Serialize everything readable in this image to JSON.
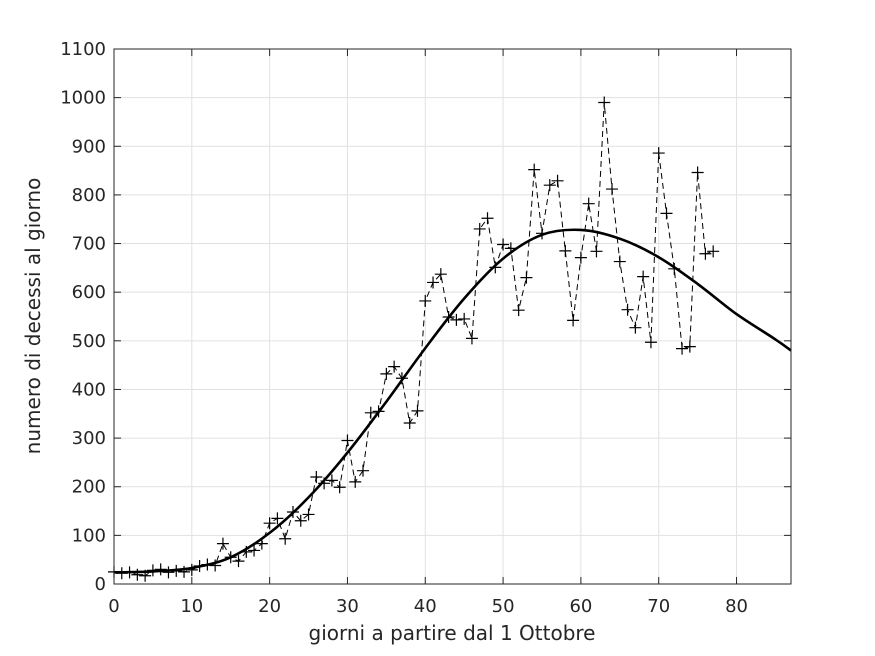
{
  "chart_data": {
    "type": "line",
    "title": "",
    "xlabel": "giorni a partire dal 1 Ottobre",
    "ylabel": "numero di decessi al giorno",
    "xlim": [
      0,
      87
    ],
    "ylim": [
      0,
      1100
    ],
    "x_ticks": [
      0,
      10,
      20,
      30,
      40,
      50,
      60,
      70,
      80
    ],
    "x_tick_labels": [
      "0",
      "10",
      "20",
      "30",
      "40",
      "50",
      "60",
      "70",
      "80"
    ],
    "y_ticks": [
      0,
      100,
      200,
      300,
      400,
      500,
      600,
      700,
      800,
      900,
      1000,
      1100
    ],
    "y_tick_labels": [
      "0",
      "100",
      "200",
      "300",
      "400",
      "500",
      "600",
      "700",
      "800",
      "900",
      "1000",
      "1100"
    ],
    "grid": true,
    "series": [
      {
        "style": "dashed line with plus markers",
        "color": "#000000",
        "x": [
          0,
          1,
          2,
          3,
          4,
          5,
          6,
          7,
          8,
          9,
          10,
          11,
          12,
          13,
          14,
          15,
          16,
          17,
          18,
          19,
          20,
          21,
          22,
          23,
          24,
          25,
          26,
          27,
          28,
          29,
          30,
          31,
          32,
          33,
          34,
          35,
          36,
          37,
          38,
          39,
          40,
          41,
          42,
          43,
          44,
          45,
          46,
          47,
          48,
          49,
          50,
          51,
          52,
          53,
          54,
          55,
          56,
          57,
          58,
          59,
          60,
          61,
          62,
          63,
          64,
          65,
          66,
          67,
          68,
          69,
          70,
          71,
          72,
          73,
          74,
          75,
          76,
          77
        ],
        "y": [
          25,
          22,
          24,
          19,
          17,
          28,
          30,
          24,
          27,
          25,
          29,
          37,
          40,
          38,
          83,
          55,
          47,
          66,
          69,
          83,
          125,
          135,
          93,
          148,
          130,
          143,
          220,
          207,
          213,
          199,
          295,
          210,
          233,
          352,
          355,
          432,
          447,
          423,
          331,
          356,
          582,
          620,
          637,
          549,
          543,
          545,
          505,
          730,
          752,
          651,
          698,
          690,
          563,
          630,
          852,
          721,
          820,
          829,
          685,
          542,
          671,
          782,
          684,
          990,
          812,
          663,
          564,
          527,
          632,
          497,
          886,
          762,
          648,
          484,
          488,
          846,
          679,
          684
        ]
      },
      {
        "style": "solid fitted curve",
        "color": "#000000",
        "x": [
          0,
          5,
          10,
          15,
          20,
          25,
          30,
          35,
          40,
          45,
          50,
          55,
          60,
          65,
          70,
          75,
          80,
          85,
          87
        ],
        "y": [
          24,
          26,
          33,
          55,
          105,
          178,
          270,
          375,
          485,
          587,
          669,
          718,
          728,
          710,
          672,
          617,
          555,
          503,
          480
        ]
      }
    ]
  }
}
